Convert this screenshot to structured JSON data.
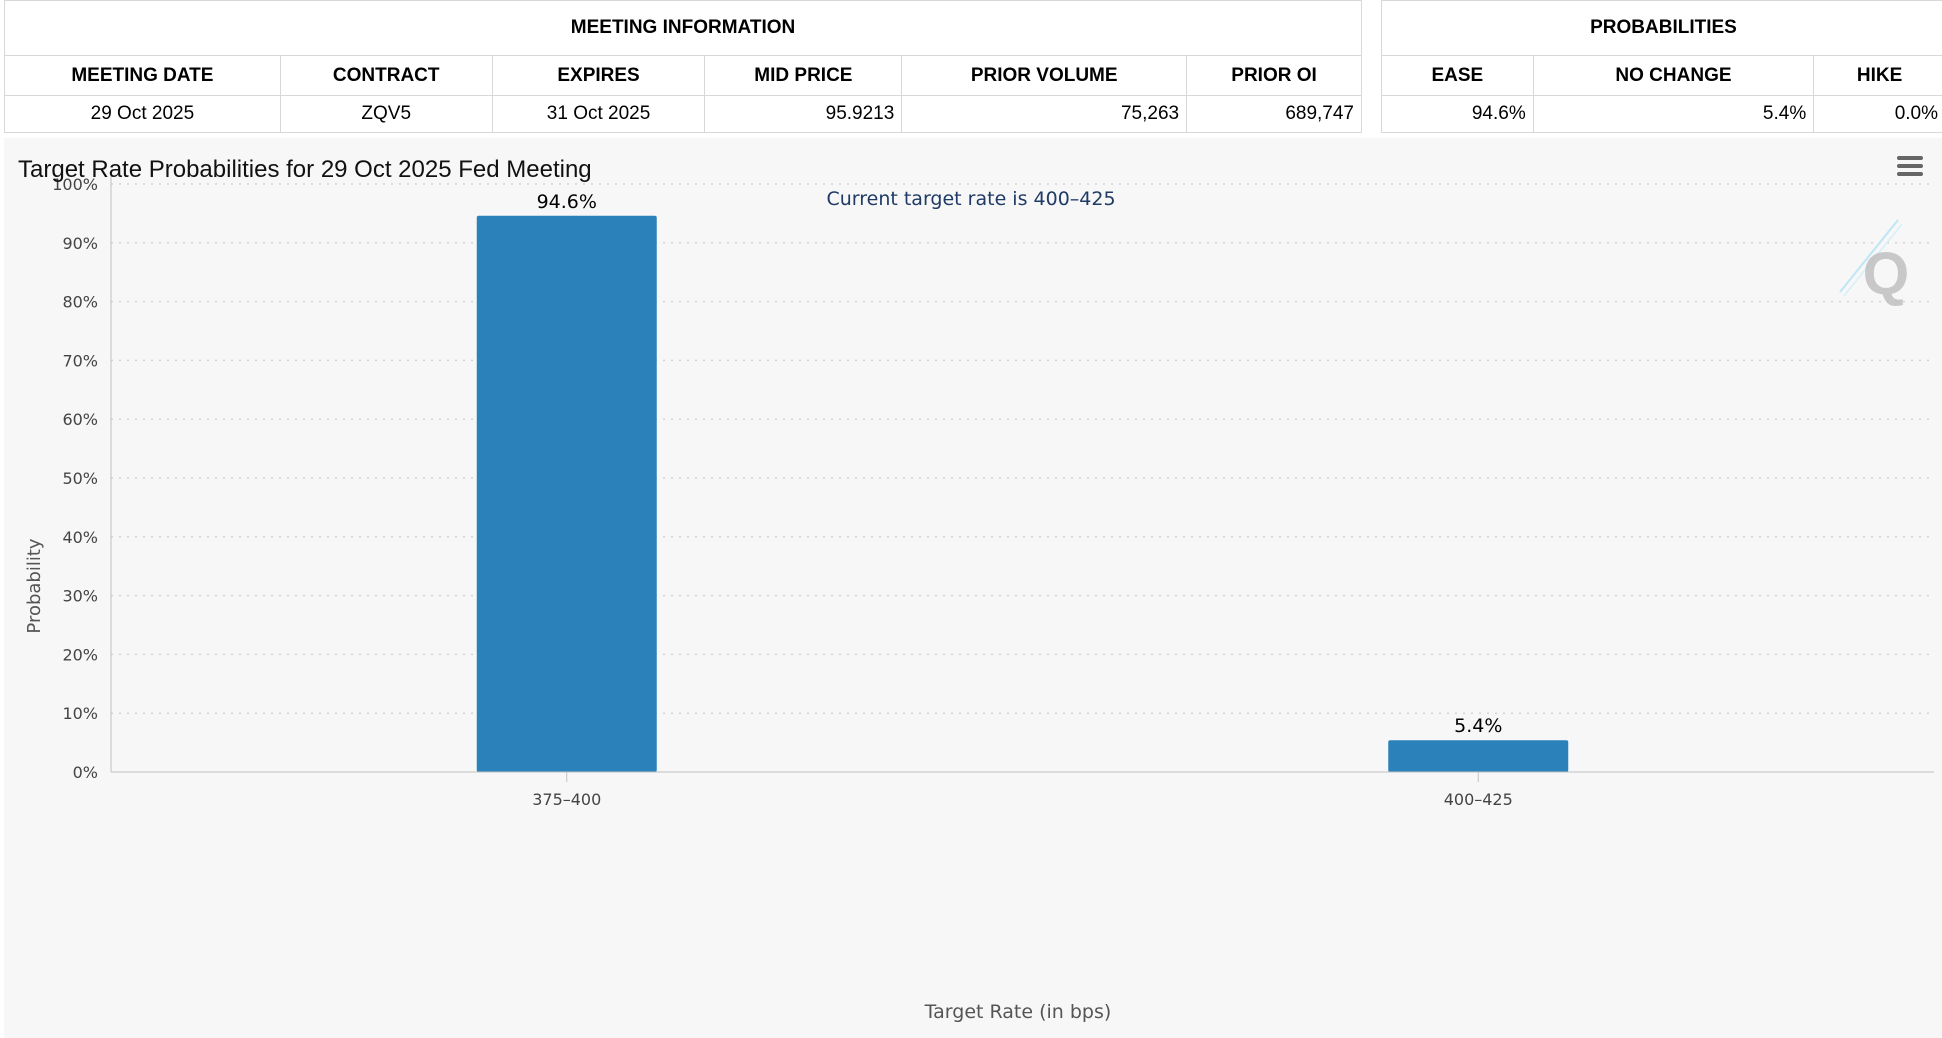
{
  "meeting_table": {
    "title": "MEETING INFORMATION",
    "headers": [
      "MEETING DATE",
      "CONTRACT",
      "EXPIRES",
      "MID PRICE",
      "PRIOR VOLUME",
      "PRIOR OI"
    ],
    "row": [
      "29 Oct 2025",
      "ZQV5",
      "31 Oct 2025",
      "95.9213",
      "75,263",
      "689,747"
    ]
  },
  "prob_table": {
    "title": "PROBABILITIES",
    "headers": [
      "EASE",
      "NO CHANGE",
      "HIKE"
    ],
    "row": [
      "94.6%",
      "5.4%",
      "0.0%"
    ]
  },
  "chart_data": {
    "type": "bar",
    "title": "Target Rate Probabilities for 29 Oct 2025 Fed Meeting",
    "subtitle": "Current target rate is 400–425",
    "xlabel": "Target Rate (in bps)",
    "ylabel": "Probability",
    "categories": [
      "375–400",
      "400–425"
    ],
    "values": [
      94.6,
      5.4
    ],
    "data_labels": [
      "94.6%",
      "5.4%"
    ],
    "ylim": [
      0,
      100
    ],
    "yticks": [
      0,
      10,
      20,
      30,
      40,
      50,
      60,
      70,
      80,
      90,
      100
    ],
    "ytick_labels": [
      "0%",
      "10%",
      "20%",
      "30%",
      "40%",
      "50%",
      "60%",
      "70%",
      "80%",
      "90%",
      "100%"
    ],
    "grid": true,
    "bar_color": "#2b81ba",
    "subtitle_color": "#1f3a66"
  },
  "icons": {
    "menu": "hamburger-menu-icon",
    "watermark": "q-logo"
  }
}
